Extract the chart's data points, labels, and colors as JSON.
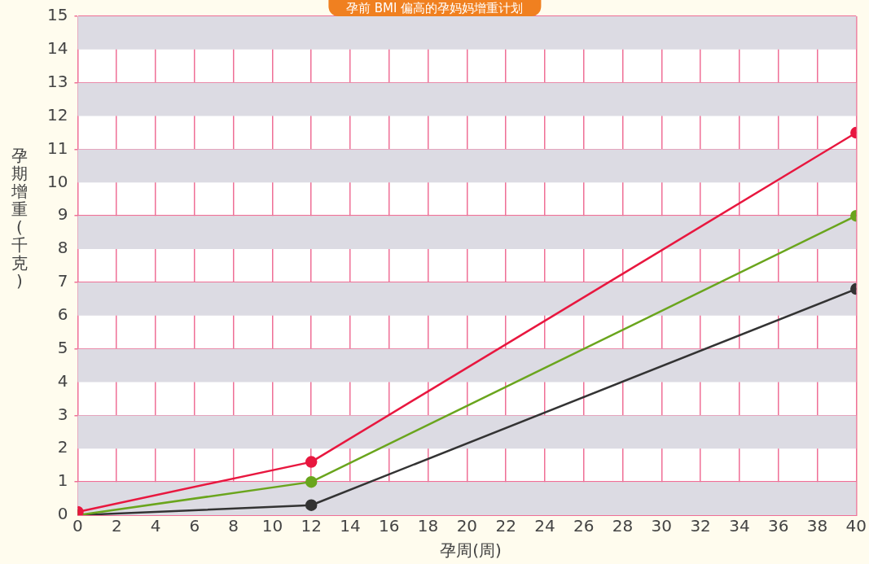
{
  "chart_data": {
    "type": "line",
    "title": "孕前 BMI 偏高的孕妈妈增重计划",
    "xlabel": "孕周(周)",
    "ylabel": "孕期增重(千克)",
    "x": [
      0,
      12,
      40
    ],
    "series": [
      {
        "color": "#e8173f",
        "values": [
          0.1,
          1.6,
          11.5
        ]
      },
      {
        "color": "#6aa51d",
        "values": [
          0,
          1.0,
          9
        ]
      },
      {
        "color": "#333333",
        "values": [
          0,
          0.3,
          6.8
        ]
      }
    ],
    "xlim": [
      0,
      40
    ],
    "xticks": [
      0,
      2,
      4,
      6,
      8,
      10,
      12,
      14,
      16,
      18,
      20,
      22,
      24,
      26,
      28,
      30,
      32,
      34,
      36,
      38,
      40
    ],
    "ylim": [
      0,
      15
    ],
    "yticks": [
      0,
      1,
      2,
      3,
      4,
      5,
      6,
      7,
      8,
      9,
      10,
      11,
      12,
      13,
      14,
      15
    ],
    "grid": true,
    "legend": false,
    "marker": "circle",
    "line_style": "solid"
  }
}
